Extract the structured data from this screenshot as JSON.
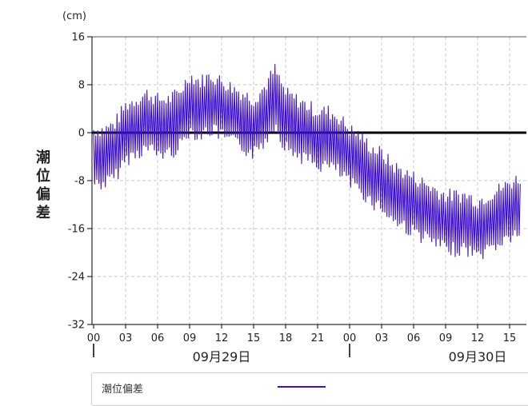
{
  "y_axis_title": "潮位偏差",
  "y_axis_unit": "(cm)",
  "legend": {
    "label": "潮位偏差",
    "color": "#3e0fcf"
  },
  "chart_data": {
    "type": "line",
    "ylabel": "潮位偏差",
    "yunit": "(cm)",
    "ylim": [
      -32,
      16
    ],
    "yticks": [
      16,
      8,
      0,
      -8,
      -16,
      -24,
      -32
    ],
    "grid": true,
    "legend_position": "bottom",
    "x_hour_labels": [
      "00",
      "03",
      "06",
      "09",
      "12",
      "15",
      "18",
      "21",
      "00",
      "03",
      "06",
      "09",
      "12",
      "15"
    ],
    "x_date_labels": [
      "09月29日",
      "09月30日"
    ],
    "series": [
      {
        "name": "潮位偏差",
        "color": "#3e0fcf",
        "sampling": "per 1 hour, 2024-09-29 00:00 to 2024-09-30 16:00 (trend; fast oscillation of about ±4 cm overlays it)",
        "values": [
          -4,
          -4,
          -3,
          0,
          1,
          2,
          1,
          1,
          2,
          5,
          4,
          5,
          4,
          3,
          2,
          1,
          3,
          6,
          2,
          1,
          0,
          -1,
          -1,
          -2,
          -4,
          -5,
          -7,
          -8,
          -10,
          -11,
          -12,
          -13,
          -14,
          -15,
          -15,
          -15,
          -16,
          -15,
          -14,
          -13,
          -12
        ]
      }
    ]
  }
}
